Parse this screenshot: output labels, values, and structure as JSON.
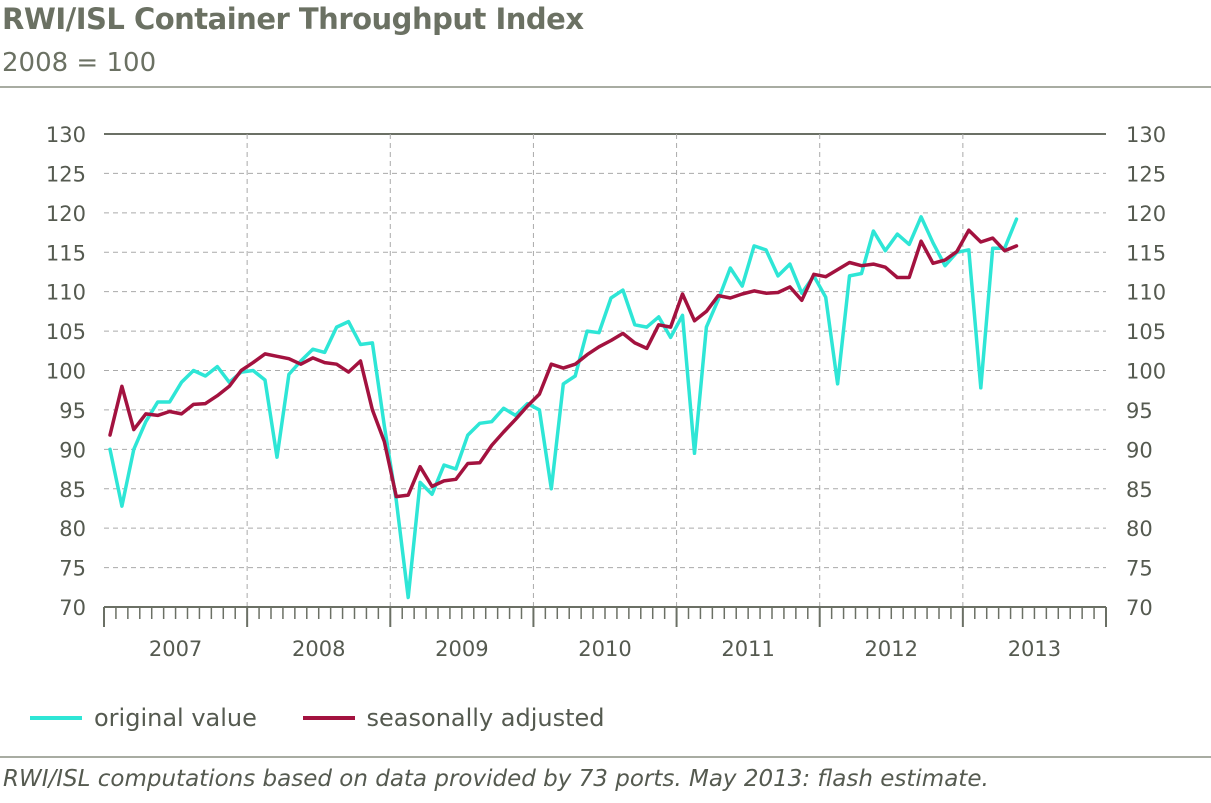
{
  "header": {
    "title": "RWI/ISL Container Throughput Index",
    "subtitle": "2008 = 100"
  },
  "legend": {
    "items": [
      {
        "label": "original value",
        "color": "#2ee6d6"
      },
      {
        "label": "seasonally adjusted",
        "color": "#a3123f"
      }
    ]
  },
  "footnote": "RWI/ISL computations based on data provided by 73 ports. May 2013: flash estimate.",
  "chart_data": {
    "type": "line",
    "ylim": [
      70,
      130
    ],
    "yticks": [
      70,
      75,
      80,
      85,
      90,
      95,
      100,
      105,
      110,
      115,
      120,
      125,
      130
    ],
    "years": [
      "2007",
      "2008",
      "2009",
      "2010",
      "2011",
      "2012",
      "2013"
    ],
    "x_start": "2007-01",
    "x_end": "2013-12",
    "grid": true,
    "legend_position": "bottom-left",
    "series": [
      {
        "name": "original value",
        "color": "#2ee6d6",
        "values": [
          90,
          82.8,
          90,
          93.5,
          96,
          96,
          98.5,
          100,
          99.3,
          100.5,
          98.5,
          99.8,
          100,
          98.8,
          89,
          99.5,
          101.2,
          102.7,
          102.3,
          105.5,
          106.2,
          103.3,
          103.5,
          93,
          83.5,
          71.2,
          85.8,
          84.3,
          88,
          87.5,
          91.8,
          93.3,
          93.5,
          95.2,
          94.3,
          95.8,
          95,
          85,
          98.3,
          99.3,
          105,
          104.8,
          109.2,
          110.2,
          105.8,
          105.5,
          106.8,
          104.2,
          107,
          89.5,
          105.5,
          109,
          113,
          110.7,
          115.8,
          115.3,
          112,
          113.5,
          109.8,
          112,
          109.3,
          98.3,
          112,
          112.3,
          117.7,
          115.2,
          117.3,
          116,
          119.5,
          116.2,
          113.3,
          115,
          115.3,
          97.8,
          115.5,
          115.5,
          119.2
        ]
      },
      {
        "name": "seasonally adjusted",
        "color": "#a3123f",
        "values": [
          91.8,
          98,
          92.5,
          94.5,
          94.3,
          94.8,
          94.5,
          95.7,
          95.8,
          96.8,
          98,
          100,
          101,
          102.1,
          101.8,
          101.5,
          100.8,
          101.6,
          101,
          100.8,
          99.8,
          101.2,
          95,
          91,
          84,
          84.2,
          87.8,
          85.3,
          86,
          86.2,
          88.2,
          88.3,
          90.5,
          92.2,
          93.8,
          95.5,
          97,
          100.8,
          100.3,
          100.8,
          102,
          103,
          103.8,
          104.7,
          103.5,
          102.8,
          105.8,
          105.5,
          109.7,
          106.3,
          107.5,
          109.5,
          109.2,
          109.7,
          110.1,
          109.8,
          109.9,
          110.6,
          108.9,
          112.2,
          111.9,
          112.8,
          113.7,
          113.3,
          113.5,
          113.1,
          111.8,
          111.8,
          116.4,
          113.6,
          114,
          115.1,
          117.8,
          116.3,
          116.8,
          115.2,
          115.8
        ]
      }
    ]
  }
}
